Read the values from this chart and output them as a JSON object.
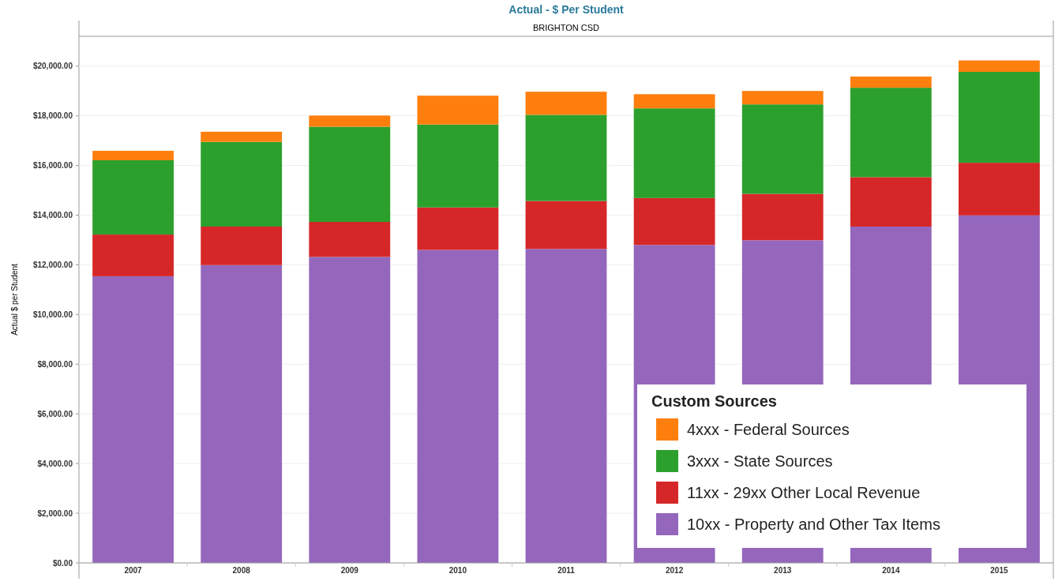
{
  "chart_data": {
    "type": "bar",
    "title": "Actual - $ Per Student",
    "subtitle": "BRIGHTON CSD",
    "ylabel": "Actual $ per Student",
    "legend_title": "Custom Sources",
    "categories": [
      "2007",
      "2008",
      "2009",
      "2010",
      "2011",
      "2012",
      "2013",
      "2014",
      "2015"
    ],
    "stacked": true,
    "series": [
      {
        "name": "10xx - Property and Other Tax Items",
        "color": "#9467bd",
        "values": [
          11540,
          11990,
          12320,
          12600,
          12640,
          12800,
          12990,
          13540,
          13990
        ]
      },
      {
        "name": "11xx - 29xx Other Local Revenue",
        "color": "#d62728",
        "values": [
          1680,
          1550,
          1410,
          1710,
          1930,
          1890,
          1870,
          1990,
          2120
        ]
      },
      {
        "name": "3xxx - State Sources",
        "color": "#2ca02c",
        "values": [
          2990,
          3410,
          3830,
          3340,
          3470,
          3610,
          3600,
          3600,
          3660
        ]
      },
      {
        "name": "4xxx - Federal Sources",
        "color": "#ff7f0e",
        "values": [
          380,
          410,
          450,
          1160,
          930,
          570,
          540,
          450,
          460
        ]
      }
    ],
    "ylim": [
      0,
      21200
    ],
    "yticks": [
      {
        "value": 0,
        "label": "$0.00"
      },
      {
        "value": 2000,
        "label": "$2,000.00"
      },
      {
        "value": 4000,
        "label": "$4,000.00"
      },
      {
        "value": 6000,
        "label": "$6,000.00"
      },
      {
        "value": 8000,
        "label": "$8,000.00"
      },
      {
        "value": 10000,
        "label": "$10,000.00"
      },
      {
        "value": 12000,
        "label": "$12,000.00"
      },
      {
        "value": 14000,
        "label": "$14,000.00"
      },
      {
        "value": 16000,
        "label": "$16,000.00"
      },
      {
        "value": 18000,
        "label": "$18,000.00"
      },
      {
        "value": 20000,
        "label": "$20,000.00"
      }
    ],
    "grid": "y",
    "legend": "bottom right"
  }
}
